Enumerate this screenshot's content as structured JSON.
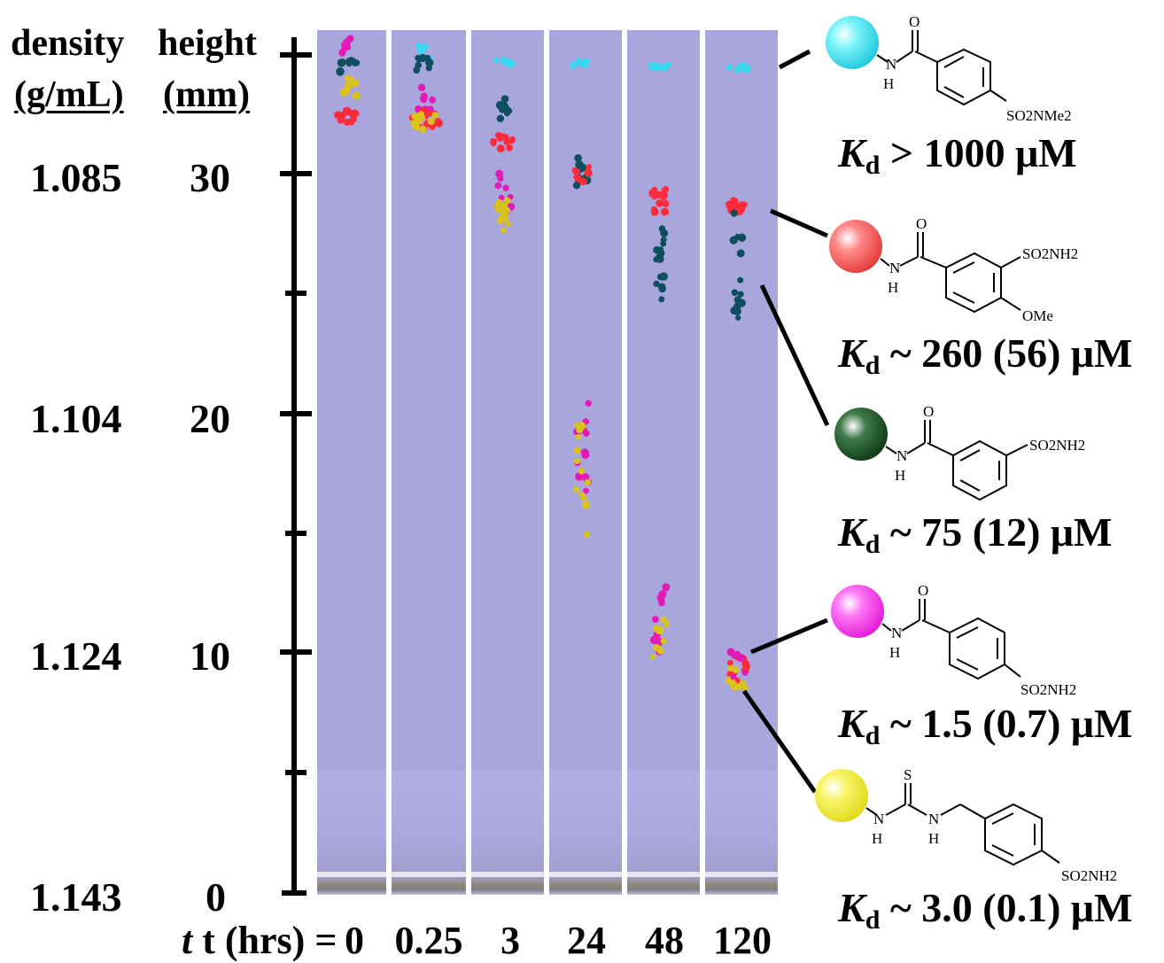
{
  "axis": {
    "density_header": "density",
    "density_unit": "(g/mL)",
    "height_header": "height",
    "height_unit": "(mm)",
    "ticks": [
      {
        "density": "1.085",
        "height": "30"
      },
      {
        "density": "1.104",
        "height": "20"
      },
      {
        "density": "1.124",
        "height": "10"
      },
      {
        "density": "1.143",
        "height": "0"
      }
    ]
  },
  "time_axis": {
    "label": "t (hrs) = ",
    "values": [
      "0",
      "0.25",
      "3",
      "24",
      "48",
      "120"
    ]
  },
  "compounds": [
    {
      "kd_value": " > 1000 μM",
      "color": "#3fe6f2",
      "subs": [
        "SO2NMe2"
      ]
    },
    {
      "kd_value": " ~ 260 (56) μM",
      "color": "#f25a5a",
      "subs": [
        "SO2NH2",
        "OMe"
      ]
    },
    {
      "kd_value": " ~ 75 (12) μM",
      "color": "#1f5a2a",
      "subs": [
        "SO2NH2"
      ]
    },
    {
      "kd_value": " ~ 1.5 (0.7) μM",
      "color": "#ff3df2",
      "subs": [
        "SO2NH2"
      ]
    },
    {
      "kd_value": " ~ 3.0 (0.1) μM",
      "color": "#f5f02a",
      "subs": [
        "SO2NH2"
      ]
    }
  ],
  "kd_symbol": "K",
  "kd_subscript": "d",
  "chem_labels": {
    "O": "O",
    "S": "S",
    "N": "N",
    "H": "H"
  },
  "colors": {
    "background_tube": "#a9a6dd",
    "cyan": "#35d8ee",
    "red": "#ff2a3a",
    "teal": "#0e4e5e",
    "magenta": "#e21ab8",
    "yellow": "#d9c21a"
  }
}
